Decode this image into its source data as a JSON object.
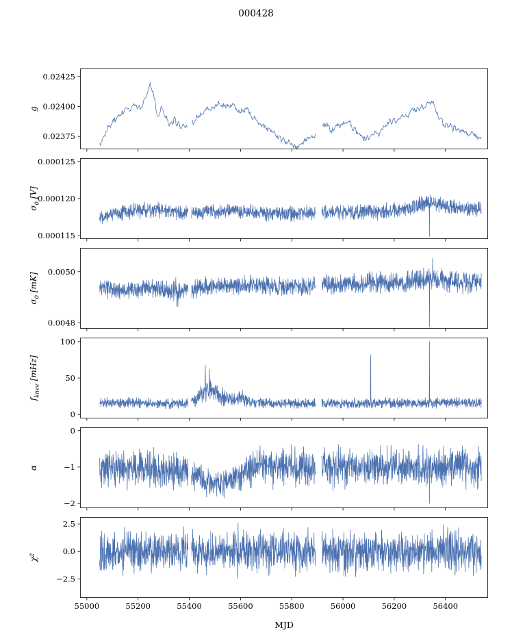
{
  "chart_data": {
    "type": "line",
    "title": "000428",
    "xlabel": "MJD",
    "line_color": "#4c72b0",
    "axis_color": "#000000",
    "xlim": [
      54975,
      56565
    ],
    "x_start": 55050,
    "x_end": 56540,
    "xticks": [
      55000,
      55200,
      55400,
      55600,
      55800,
      56000,
      56200,
      56400
    ],
    "xtick_labels": [
      "55000",
      "55200",
      "55400",
      "55600",
      "55800",
      "56000",
      "56200",
      "56400"
    ],
    "gaps": [
      [
        55396,
        55408
      ],
      [
        55893,
        55917
      ]
    ],
    "legend": "none",
    "grid": false,
    "panels": [
      {
        "ylabel": "g",
        "ylabel_parts": [
          [
            "g",
            0
          ]
        ],
        "ylim": [
          0.023645,
          0.024315
        ],
        "yticks": [
          0.02375,
          0.024,
          0.02425
        ],
        "ytick_labels": [
          "0.02375",
          "0.02400",
          "0.02425"
        ],
        "seed": 11,
        "points": 560,
        "noise": "band",
        "smooth": true,
        "amp_keys": [
          [
            55050,
            5e-05
          ],
          [
            56540,
            5e-05
          ]
        ],
        "mean_keys": [
          [
            55050,
            0.023665
          ],
          [
            55075,
            0.02379
          ],
          [
            55100,
            0.02387
          ],
          [
            55140,
            0.02396
          ],
          [
            55180,
            0.02399
          ],
          [
            55215,
            0.024
          ],
          [
            55245,
            0.02417
          ],
          [
            55262,
            0.02412
          ],
          [
            55275,
            0.0239
          ],
          [
            55290,
            0.024
          ],
          [
            55305,
            0.02392
          ],
          [
            55320,
            0.02385
          ],
          [
            55345,
            0.02388
          ],
          [
            55370,
            0.02383
          ],
          [
            55400,
            0.02385
          ],
          [
            55430,
            0.0239
          ],
          [
            55460,
            0.02396
          ],
          [
            55500,
            0.02401
          ],
          [
            55540,
            0.02403
          ],
          [
            55575,
            0.024
          ],
          [
            55600,
            0.02395
          ],
          [
            55620,
            0.024
          ],
          [
            55645,
            0.02393
          ],
          [
            55670,
            0.02387
          ],
          [
            55700,
            0.02382
          ],
          [
            55730,
            0.02378
          ],
          [
            55760,
            0.02374
          ],
          [
            55790,
            0.0237
          ],
          [
            55815,
            0.02366
          ],
          [
            55840,
            0.02369
          ],
          [
            55870,
            0.02374
          ],
          [
            55900,
            0.02378
          ],
          [
            55930,
            0.02385
          ],
          [
            55960,
            0.0238
          ],
          [
            55990,
            0.02384
          ],
          [
            56020,
            0.02388
          ],
          [
            56050,
            0.02379
          ],
          [
            56080,
            0.02374
          ],
          [
            56110,
            0.02376
          ],
          [
            56140,
            0.02378
          ],
          [
            56170,
            0.02385
          ],
          [
            56200,
            0.02388
          ],
          [
            56230,
            0.0239
          ],
          [
            56260,
            0.02394
          ],
          [
            56290,
            0.02398
          ],
          [
            56320,
            0.024
          ],
          [
            56345,
            0.02406
          ],
          [
            56360,
            0.02396
          ],
          [
            56390,
            0.02387
          ],
          [
            56420,
            0.02383
          ],
          [
            56450,
            0.0238
          ],
          [
            56480,
            0.02379
          ],
          [
            56510,
            0.02376
          ],
          [
            56540,
            0.02374
          ]
        ],
        "spikes": []
      },
      {
        "ylabel": "σ₀ [V]",
        "ylabel_parts": [
          [
            "σ",
            0
          ],
          [
            "0",
            1
          ],
          [
            " [V]",
            0
          ]
        ],
        "ylim": [
          0.0001146,
          0.0001254
        ],
        "yticks": [
          0.000115,
          0.00012,
          0.000125
        ],
        "ytick_labels": [
          "0.000115",
          "0.000120",
          "0.000125"
        ],
        "seed": 22,
        "points": 1650,
        "noise": "band",
        "smooth": false,
        "clamp": [
          0.0001152,
          0.0001208
        ],
        "amp_keys": [
          [
            55050,
            1.2e-06
          ],
          [
            55250,
            1.3e-06
          ],
          [
            55400,
            1.1e-06
          ],
          [
            56000,
            1.2e-06
          ],
          [
            56330,
            1.3e-06
          ],
          [
            56540,
            1.2e-06
          ]
        ],
        "mean_keys": [
          [
            55050,
            0.0001177
          ],
          [
            55120,
            0.0001181
          ],
          [
            55200,
            0.0001184
          ],
          [
            55280,
            0.0001185
          ],
          [
            55340,
            0.0001182
          ],
          [
            55395,
            0.0001181
          ],
          [
            55410,
            0.0001179
          ],
          [
            55480,
            0.0001183
          ],
          [
            55560,
            0.0001184
          ],
          [
            55640,
            0.0001182
          ],
          [
            55720,
            0.000118
          ],
          [
            55800,
            0.0001179
          ],
          [
            55870,
            0.000118
          ],
          [
            55950,
            0.0001182
          ],
          [
            56030,
            0.0001182
          ],
          [
            56110,
            0.0001182
          ],
          [
            56190,
            0.0001184
          ],
          [
            56270,
            0.0001187
          ],
          [
            56330,
            0.0001196
          ],
          [
            56370,
            0.0001192
          ],
          [
            56440,
            0.0001188
          ],
          [
            56540,
            0.0001186
          ]
        ],
        "spikes": [
          [
            56338,
            0.0001149
          ]
        ]
      },
      {
        "ylabel": "σ₀ [mK]",
        "ylabel_parts": [
          [
            "σ",
            0
          ],
          [
            "0",
            1
          ],
          [
            " [mK]",
            0
          ]
        ],
        "ylim": [
          0.004778,
          0.005092
        ],
        "yticks": [
          0.0048,
          0.005
        ],
        "ytick_labels": [
          "0.0048",
          "0.0050"
        ],
        "seed": 33,
        "points": 1650,
        "noise": "band",
        "smooth": false,
        "clamp": [
          0.004805,
          0.00506
        ],
        "amp_keys": [
          [
            55050,
            4e-05
          ],
          [
            55330,
            4e-05
          ],
          [
            55352,
            7e-05
          ],
          [
            55375,
            4e-05
          ],
          [
            55900,
            4.5e-05
          ],
          [
            56200,
            5e-05
          ],
          [
            56540,
            5e-05
          ]
        ],
        "mean_keys": [
          [
            55050,
            0.004935
          ],
          [
            55150,
            0.004925
          ],
          [
            55250,
            0.004935
          ],
          [
            55352,
            0.00492
          ],
          [
            55450,
            0.00494
          ],
          [
            55560,
            0.004945
          ],
          [
            55660,
            0.00495
          ],
          [
            55760,
            0.00494
          ],
          [
            55860,
            0.004945
          ],
          [
            55960,
            0.00495
          ],
          [
            56060,
            0.00495
          ],
          [
            56160,
            0.00496
          ],
          [
            56260,
            0.00496
          ],
          [
            56340,
            0.00497
          ],
          [
            56420,
            0.00496
          ],
          [
            56540,
            0.00496
          ]
        ],
        "spikes": [
          [
            55352,
            0.004862
          ],
          [
            56338,
            0.004783
          ],
          [
            56350,
            0.005052
          ]
        ]
      },
      {
        "ylabel": "fₖₙₑₑ [mHz]",
        "ylabel_parts": [
          [
            "f",
            0
          ],
          [
            "knee",
            1
          ],
          [
            " [mHz]",
            0
          ]
        ],
        "ylim": [
          -5,
          105
        ],
        "yticks": [
          0,
          50,
          100
        ],
        "ytick_labels": [
          "0",
          "50",
          "100"
        ],
        "seed": 44,
        "points": 1650,
        "noise": "band",
        "smooth": false,
        "clamp": [
          2,
          75
        ],
        "amp_keys": [
          [
            55050,
            8
          ],
          [
            55400,
            8
          ],
          [
            55440,
            14
          ],
          [
            55465,
            22
          ],
          [
            55500,
            18
          ],
          [
            55550,
            12
          ],
          [
            55590,
            10
          ],
          [
            55610,
            12
          ],
          [
            55640,
            9
          ],
          [
            55700,
            8
          ],
          [
            56540,
            8
          ]
        ],
        "mean_keys": [
          [
            55050,
            16
          ],
          [
            55380,
            15
          ],
          [
            55430,
            20
          ],
          [
            55465,
            36
          ],
          [
            55495,
            30
          ],
          [
            55530,
            24
          ],
          [
            55570,
            20
          ],
          [
            55600,
            24
          ],
          [
            55630,
            18
          ],
          [
            55680,
            16
          ],
          [
            55800,
            15
          ],
          [
            56540,
            16
          ]
        ],
        "spikes": [
          [
            55462,
            68
          ],
          [
            55478,
            62
          ],
          [
            56108,
            82
          ],
          [
            56338,
            100
          ]
        ]
      },
      {
        "ylabel": "α",
        "ylabel_parts": [
          [
            "α",
            0
          ]
        ],
        "ylim": [
          -2.12,
          0.08
        ],
        "yticks": [
          -2,
          -1,
          0
        ],
        "ytick_labels": [
          "−2",
          "−1",
          "0"
        ],
        "seed": 55,
        "points": 1650,
        "noise": "band3",
        "smooth": false,
        "clamp": [
          -2.02,
          -0.08
        ],
        "amp_keys": [
          [
            55050,
            0.72
          ],
          [
            55250,
            0.72
          ],
          [
            55300,
            0.6
          ],
          [
            55400,
            0.65
          ],
          [
            55460,
            0.55
          ],
          [
            55560,
            0.55
          ],
          [
            55620,
            0.7
          ],
          [
            56540,
            0.72
          ]
        ],
        "mean_keys": [
          [
            55050,
            -1.0
          ],
          [
            55260,
            -1.05
          ],
          [
            55320,
            -1.15
          ],
          [
            55380,
            -1.05
          ],
          [
            55430,
            -1.2
          ],
          [
            55470,
            -1.45
          ],
          [
            55540,
            -1.48
          ],
          [
            55580,
            -1.3
          ],
          [
            55620,
            -1.1
          ],
          [
            55660,
            -1.0
          ],
          [
            55900,
            -1.0
          ],
          [
            56540,
            -1.0
          ]
        ],
        "spikes": [
          [
            56338,
            -2.0
          ]
        ]
      },
      {
        "ylabel": "χ²",
        "ylabel_parts": [
          [
            "χ",
            0
          ],
          [
            "2",
            -1
          ]
        ],
        "ylim": [
          -4.2,
          3.1
        ],
        "yticks": [
          -2.5,
          0.0,
          2.5
        ],
        "ytick_labels": [
          "−2.5",
          "0.0",
          "2.5"
        ],
        "seed": 66,
        "points": 1650,
        "noise": "heavy",
        "smooth": false,
        "clamp": [
          -3.2,
          3.0
        ],
        "amp_keys": [
          [
            55050,
            3.0
          ],
          [
            56540,
            3.0
          ]
        ],
        "mean_keys": [
          [
            55050,
            0
          ],
          [
            56540,
            0
          ]
        ],
        "spikes": []
      }
    ]
  }
}
